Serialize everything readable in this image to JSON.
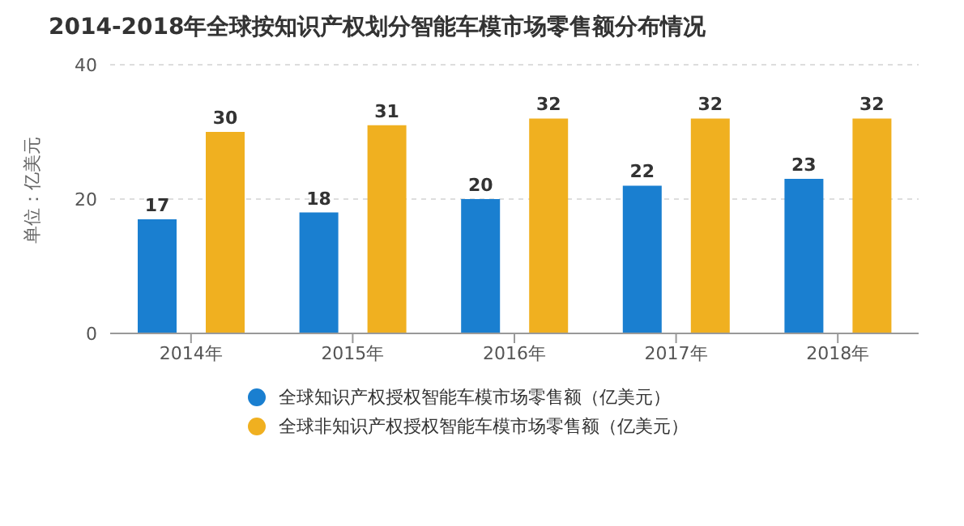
{
  "chart_data": {
    "type": "bar",
    "title": "2014-2018年全球按知识产权划分智能车模市场零售额分布情况",
    "ylabel": "单位：亿美元",
    "categories": [
      "2014年",
      "2015年",
      "2016年",
      "2017年",
      "2018年"
    ],
    "series": [
      {
        "name": "全球知识产权授权智能车模市场零售额（亿美元）",
        "color": "#1a7fd0",
        "values": [
          17,
          18,
          20,
          22,
          23
        ]
      },
      {
        "name": "全球非知识产权授权智能车模市场零售额（亿美元）",
        "color": "#f0b020",
        "values": [
          30,
          31,
          32,
          32,
          32
        ]
      }
    ],
    "ylim": [
      0,
      40
    ],
    "yticks": [
      0,
      20,
      40
    ],
    "grid": "y",
    "legend": "bottom",
    "data_labels": true
  }
}
